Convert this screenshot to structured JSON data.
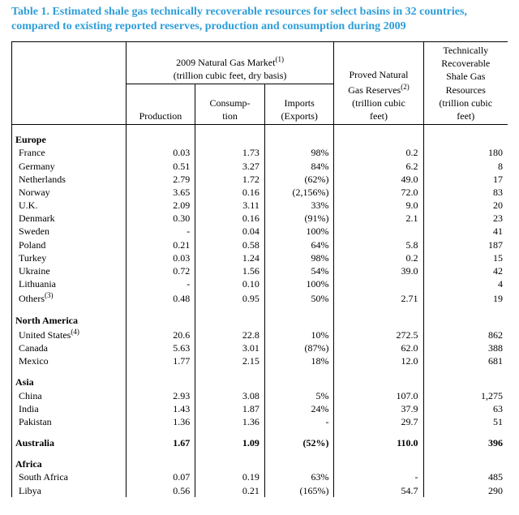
{
  "title": "Table 1.  Estimated shale gas technically recoverable resources for select basins in 32 countries, compared to existing reported reserves, production and consumption during 2009",
  "headers": {
    "marketGroup": "2009 Natural Gas Market",
    "marketGroupNote": "(1)",
    "marketGroupSub": "(trillion cubic feet, dry basis)",
    "production": "Production",
    "consumption": "Consump-\ntion",
    "imports": "Imports\n(Exports)",
    "reserves": "Proved Natural\nGas Reserves",
    "reservesNote": "(2)",
    "reservesSub": "(trillion cubic\nfeet)",
    "shale": "Technically\nRecoverable\nShale Gas\nResources\n(trillion cubic\nfeet)"
  },
  "regionLabels": {
    "europe": "Europe",
    "northamerica": "North America",
    "asia": "Asia",
    "australia": "Australia",
    "africa": "Africa"
  },
  "othersNote": "(3)",
  "usNote": "(4)",
  "rows": {
    "europe": [
      {
        "c": "France",
        "p": "0.03",
        "cn": "1.73",
        "im": "98%",
        "r": "0.2",
        "s": "180"
      },
      {
        "c": "Germany",
        "p": "0.51",
        "cn": "3.27",
        "im": "84%",
        "r": "6.2",
        "s": "8"
      },
      {
        "c": "Netherlands",
        "p": "2.79",
        "cn": "1.72",
        "im": "(62%)",
        "r": "49.0",
        "s": "17"
      },
      {
        "c": "Norway",
        "p": "3.65",
        "cn": "0.16",
        "im": "(2,156%)",
        "r": "72.0",
        "s": "83"
      },
      {
        "c": "U.K.",
        "p": "2.09",
        "cn": "3.11",
        "im": "33%",
        "r": "9.0",
        "s": "20"
      },
      {
        "c": "Denmark",
        "p": "0.30",
        "cn": "0.16",
        "im": "(91%)",
        "r": "2.1",
        "s": "23"
      },
      {
        "c": "Sweden",
        "p": "-",
        "cn": "0.04",
        "im": "100%",
        "r": "",
        "s": "41"
      },
      {
        "c": "Poland",
        "p": "0.21",
        "cn": "0.58",
        "im": "64%",
        "r": "5.8",
        "s": "187"
      },
      {
        "c": "Turkey",
        "p": "0.03",
        "cn": "1.24",
        "im": "98%",
        "r": "0.2",
        "s": "15"
      },
      {
        "c": "Ukraine",
        "p": "0.72",
        "cn": "1.56",
        "im": "54%",
        "r": "39.0",
        "s": "42"
      },
      {
        "c": "Lithuania",
        "p": "-",
        "cn": "0.10",
        "im": "100%",
        "r": "",
        "s": "4"
      },
      {
        "c": "Others",
        "p": "0.48",
        "cn": "0.95",
        "im": "50%",
        "r": "2.71",
        "s": "19",
        "note": "(3)"
      }
    ],
    "northamerica": [
      {
        "c": "United States",
        "p": "20.6",
        "cn": "22.8",
        "im": "10%",
        "r": "272.5",
        "s": "862",
        "note": "(4)"
      },
      {
        "c": "Canada",
        "p": "5.63",
        "cn": "3.01",
        "im": "(87%)",
        "r": "62.0",
        "s": "388"
      },
      {
        "c": "Mexico",
        "p": "1.77",
        "cn": "2.15",
        "im": "18%",
        "r": "12.0",
        "s": "681"
      }
    ],
    "asia": [
      {
        "c": "China",
        "p": "2.93",
        "cn": "3.08",
        "im": "5%",
        "r": "107.0",
        "s": "1,275"
      },
      {
        "c": "India",
        "p": "1.43",
        "cn": "1.87",
        "im": "24%",
        "r": "37.9",
        "s": "63"
      },
      {
        "c": "Pakistan",
        "p": "1.36",
        "cn": "1.36",
        "im": "-",
        "r": "29.7",
        "s": "51"
      }
    ],
    "australia": [
      {
        "c": "Australia",
        "p": "1.67",
        "cn": "1.09",
        "im": "(52%)",
        "r": "110.0",
        "s": "396",
        "regionRow": true
      }
    ],
    "africa": [
      {
        "c": "South Africa",
        "p": "0.07",
        "cn": "0.19",
        "im": "63%",
        "r": "-",
        "s": "485"
      },
      {
        "c": "Libya",
        "p": "0.56",
        "cn": "0.21",
        "im": "(165%)",
        "r": "54.7",
        "s": "290"
      }
    ]
  }
}
